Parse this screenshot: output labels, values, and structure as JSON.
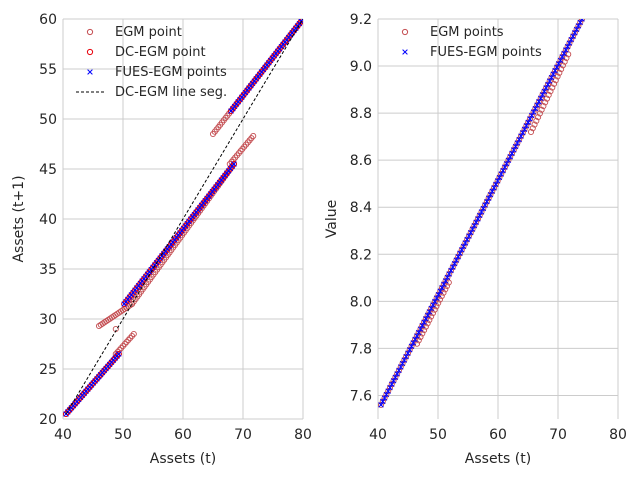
{
  "chart_data": [
    {
      "type": "scatter",
      "xlabel": "Assets (t)",
      "ylabel": "Assets (t+1)",
      "xlim": [
        40,
        80
      ],
      "ylim": [
        20,
        60
      ],
      "xticks": [
        "40",
        "50",
        "60",
        "70",
        "80"
      ],
      "yticks": [
        "20",
        "25",
        "30",
        "35",
        "40",
        "45",
        "50",
        "55",
        "60"
      ],
      "grid": true,
      "legend_placement": "top-left",
      "legend": [
        "EGM point",
        "DC-EGM point",
        "FUES-EGM points",
        "DC-EGM line seg."
      ],
      "series": [
        {
          "name": "EGM point",
          "marker": "open-circle",
          "color": "#c44e52",
          "segments": [
            {
              "x": [
                40.5,
                49.3
              ],
              "y": [
                20.5,
                26.5
              ]
            },
            {
              "x": [
                48.8,
                51.8
              ],
              "y": [
                26.5,
                28.5
              ]
            },
            {
              "x": [
                46.0,
                51.5
              ],
              "y": [
                29.3,
                31.5
              ]
            },
            {
              "x": [
                51.5,
                68.5
              ],
              "y": [
                31.5,
                45.5
              ]
            },
            {
              "x": [
                67.8,
                71.7
              ],
              "y": [
                45.5,
                48.3
              ]
            },
            {
              "x": [
                65.0,
                80.0
              ],
              "y": [
                48.5,
                60.0
              ]
            }
          ],
          "extra_points": [
            {
              "x": 48.8,
              "y": 29.0
            }
          ]
        },
        {
          "name": "DC-EGM point",
          "marker": "open-circle",
          "color": "#e8000b",
          "segments": [
            {
              "x": [
                40.5,
                49.3
              ],
              "y": [
                20.5,
                26.5
              ]
            },
            {
              "x": [
                50.2,
                68.5
              ],
              "y": [
                31.5,
                45.5
              ]
            },
            {
              "x": [
                68.0,
                80.0
              ],
              "y": [
                50.8,
                60.0
              ]
            }
          ]
        },
        {
          "name": "FUES-EGM points",
          "marker": "x",
          "color": "#0000ff",
          "segments": [
            {
              "x": [
                40.5,
                49.3
              ],
              "y": [
                20.5,
                26.5
              ]
            },
            {
              "x": [
                50.2,
                68.5
              ],
              "y": [
                31.5,
                45.5
              ]
            },
            {
              "x": [
                68.0,
                80.0
              ],
              "y": [
                50.8,
                60.0
              ]
            }
          ]
        },
        {
          "name": "DC-EGM line seg.",
          "marker": "dashed-line",
          "color": "#000000",
          "segments": [
            {
              "x": [
                40.5,
                80.0
              ],
              "y": [
                20.5,
                60.0
              ]
            }
          ]
        }
      ]
    },
    {
      "type": "scatter",
      "xlabel": "Assets (t)",
      "ylabel": "Value",
      "xlim": [
        40,
        80
      ],
      "ylim": [
        7.5,
        9.2
      ],
      "xticks": [
        "40",
        "50",
        "60",
        "70",
        "80"
      ],
      "yticks": [
        "7.6",
        "7.8",
        "8.0",
        "8.2",
        "8.4",
        "8.6",
        "8.8",
        "9.0",
        "9.2"
      ],
      "grid": true,
      "legend_placement": "top-left",
      "legend": [
        "EGM points",
        "FUES-EGM points"
      ],
      "series": [
        {
          "name": "EGM points",
          "marker": "open-circle",
          "color": "#c44e52",
          "segments": [
            {
              "x": [
                40.5,
                74.0
              ],
              "y": [
                7.56,
                9.2
              ]
            },
            {
              "x": [
                46.5,
                51.8
              ],
              "y": [
                7.82,
                8.08
              ]
            },
            {
              "x": [
                65.5,
                71.7
              ],
              "y": [
                8.72,
                9.05
              ]
            }
          ]
        },
        {
          "name": "FUES-EGM points",
          "marker": "x",
          "color": "#0000ff",
          "segments": [
            {
              "x": [
                40.5,
                74.0
              ],
              "y": [
                7.56,
                9.2
              ]
            }
          ]
        }
      ]
    }
  ]
}
